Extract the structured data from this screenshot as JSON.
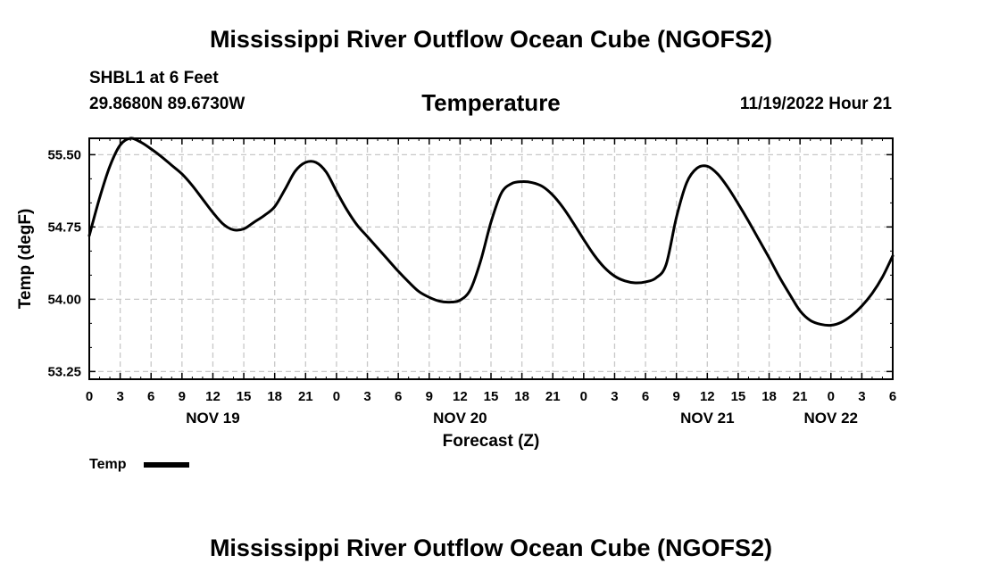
{
  "header": {
    "title": "Mississippi River Outflow Ocean Cube (NGOFS2)",
    "station": "SHBL1 at 6 Feet",
    "coords": "29.8680N  89.6730W",
    "variable": "Temperature",
    "datetime": "11/19/2022 Hour 21"
  },
  "footer": {
    "title": "Mississippi River Outflow Ocean Cube (NGOFS2)"
  },
  "chart_data": {
    "type": "line",
    "title": "Temperature",
    "xlabel": "Forecast (Z)",
    "ylabel": "Temp (degF)",
    "xlim": [
      0,
      78
    ],
    "ylim": [
      53.17,
      55.67
    ],
    "grid": true,
    "xticks": [
      {
        "h": 0,
        "label": "0"
      },
      {
        "h": 3,
        "label": "3"
      },
      {
        "h": 6,
        "label": "6"
      },
      {
        "h": 9,
        "label": "9"
      },
      {
        "h": 12,
        "label": "12"
      },
      {
        "h": 15,
        "label": "15"
      },
      {
        "h": 18,
        "label": "18"
      },
      {
        "h": 21,
        "label": "21"
      },
      {
        "h": 24,
        "label": "0"
      },
      {
        "h": 27,
        "label": "3"
      },
      {
        "h": 30,
        "label": "6"
      },
      {
        "h": 33,
        "label": "9"
      },
      {
        "h": 36,
        "label": "12"
      },
      {
        "h": 39,
        "label": "15"
      },
      {
        "h": 42,
        "label": "18"
      },
      {
        "h": 45,
        "label": "21"
      },
      {
        "h": 48,
        "label": "0"
      },
      {
        "h": 51,
        "label": "3"
      },
      {
        "h": 54,
        "label": "6"
      },
      {
        "h": 57,
        "label": "9"
      },
      {
        "h": 60,
        "label": "12"
      },
      {
        "h": 63,
        "label": "15"
      },
      {
        "h": 66,
        "label": "18"
      },
      {
        "h": 69,
        "label": "21"
      },
      {
        "h": 72,
        "label": "0"
      },
      {
        "h": 75,
        "label": "3"
      },
      {
        "h": 78,
        "label": "6"
      }
    ],
    "date_labels": [
      {
        "h": 12,
        "label": "NOV 19"
      },
      {
        "h": 36,
        "label": "NOV 20"
      },
      {
        "h": 60,
        "label": "NOV 21"
      },
      {
        "h": 72,
        "label": "NOV 22"
      }
    ],
    "yticks": [
      53.25,
      54.0,
      54.75,
      55.5
    ],
    "ytick_labels": [
      "53.25",
      "54.00",
      "54.75",
      "55.50"
    ],
    "legend": {
      "label": "Temp",
      "position": "bottom-left"
    },
    "series": [
      {
        "name": "Temp",
        "x": [
          0,
          1,
          2,
          3,
          4,
          5,
          6,
          7,
          8,
          9,
          10,
          11,
          12,
          13,
          14,
          15,
          16,
          17,
          18,
          19,
          20,
          21,
          22,
          23,
          24,
          25,
          26,
          27,
          28,
          29,
          30,
          31,
          32,
          33,
          34,
          35,
          36,
          37,
          38,
          39,
          40,
          41,
          42,
          43,
          44,
          45,
          46,
          47,
          48,
          49,
          50,
          51,
          52,
          53,
          54,
          55,
          56,
          57,
          58,
          59,
          60,
          61,
          62,
          63,
          64,
          65,
          66,
          67,
          68,
          69,
          70,
          71,
          72,
          73,
          74,
          75,
          76,
          77,
          78
        ],
        "values": [
          54.66,
          55.05,
          55.38,
          55.6,
          55.67,
          55.63,
          55.56,
          55.48,
          55.39,
          55.3,
          55.18,
          55.04,
          54.9,
          54.78,
          54.72,
          54.73,
          54.8,
          54.87,
          54.96,
          55.14,
          55.33,
          55.42,
          55.42,
          55.32,
          55.12,
          54.93,
          54.77,
          54.65,
          54.53,
          54.41,
          54.29,
          54.18,
          54.08,
          54.02,
          53.98,
          53.97,
          53.99,
          54.1,
          54.4,
          54.8,
          55.1,
          55.2,
          55.22,
          55.21,
          55.17,
          55.08,
          54.95,
          54.79,
          54.62,
          54.46,
          54.33,
          54.24,
          54.19,
          54.17,
          54.18,
          54.22,
          54.36,
          54.85,
          55.21,
          55.36,
          55.38,
          55.3,
          55.16,
          54.99,
          54.81,
          54.62,
          54.43,
          54.23,
          54.05,
          53.88,
          53.78,
          53.74,
          53.73,
          53.76,
          53.83,
          53.93,
          54.06,
          54.23,
          54.45
        ]
      }
    ]
  }
}
